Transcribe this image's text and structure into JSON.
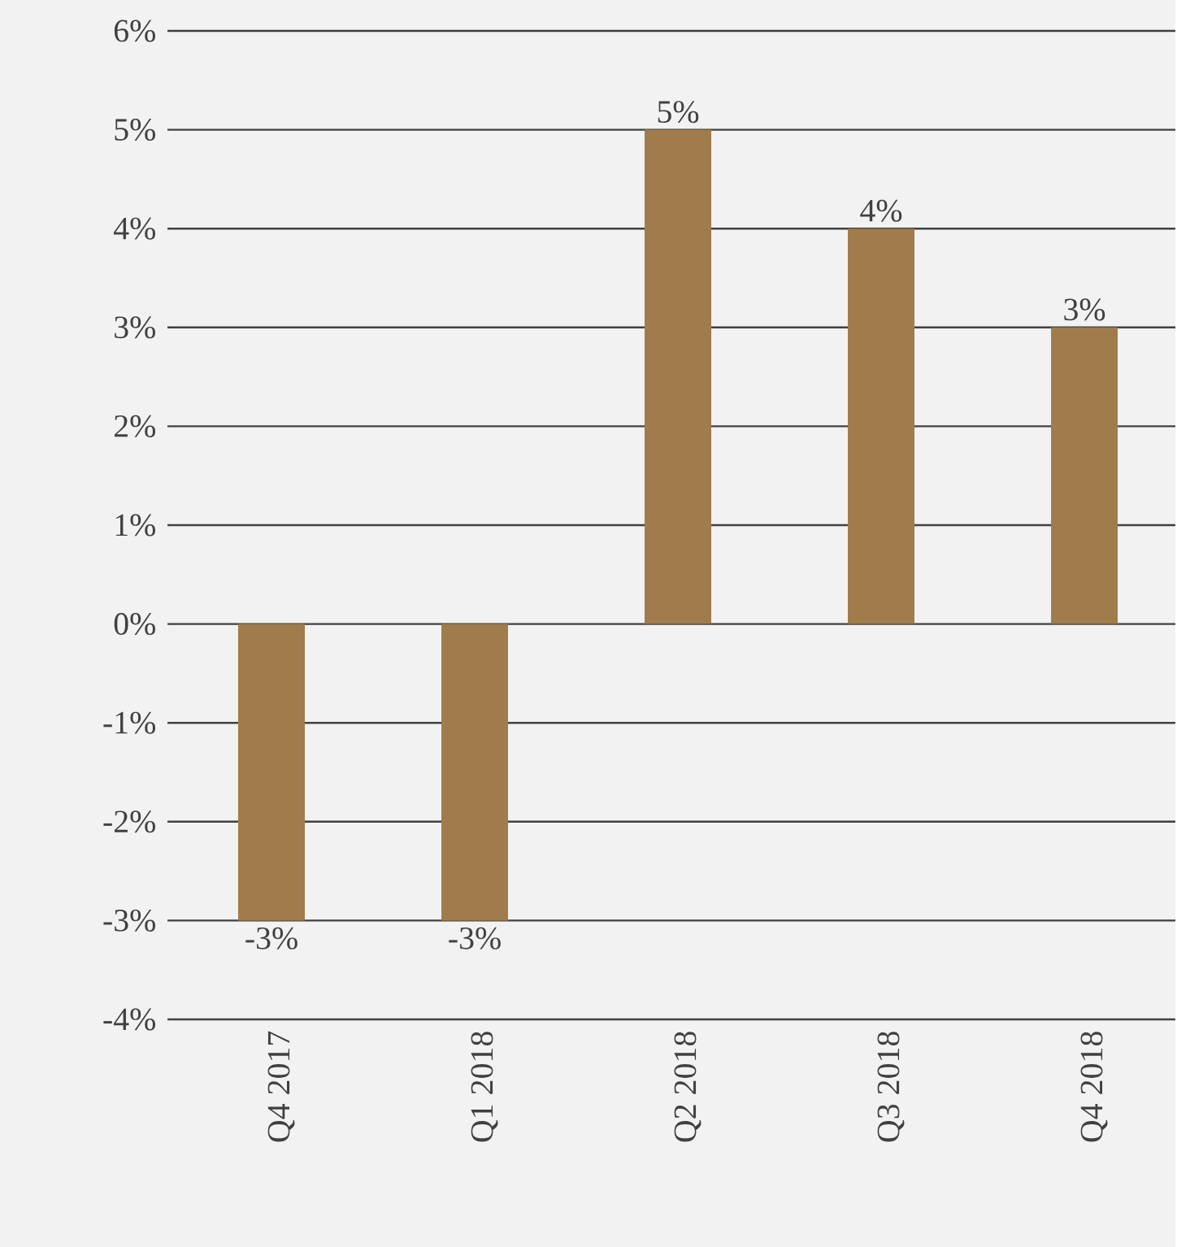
{
  "chart_data": {
    "type": "bar",
    "categories": [
      "Q4 2017",
      "Q1 2018",
      "Q2 2018",
      "Q3 2018",
      "Q4 2018"
    ],
    "values": [
      -3,
      -3,
      5,
      4,
      3
    ],
    "color": "#a07c4c",
    "value_labels": [
      "-3%",
      "-3%",
      "5%",
      "4%",
      "3%"
    ],
    "ylim": [
      -4,
      6
    ],
    "yticks": [
      {
        "value": -4,
        "label": "-4%"
      },
      {
        "value": -3,
        "label": "-3%"
      },
      {
        "value": -2,
        "label": "-2%"
      },
      {
        "value": -1,
        "label": "-1%"
      },
      {
        "value": 0,
        "label": "0%"
      },
      {
        "value": 1,
        "label": "1%"
      },
      {
        "value": 2,
        "label": "2%"
      },
      {
        "value": 3,
        "label": "3%"
      },
      {
        "value": 4,
        "label": "4%"
      },
      {
        "value": 5,
        "label": "5%"
      },
      {
        "value": 6,
        "label": "6%"
      }
    ],
    "grid": "y"
  }
}
